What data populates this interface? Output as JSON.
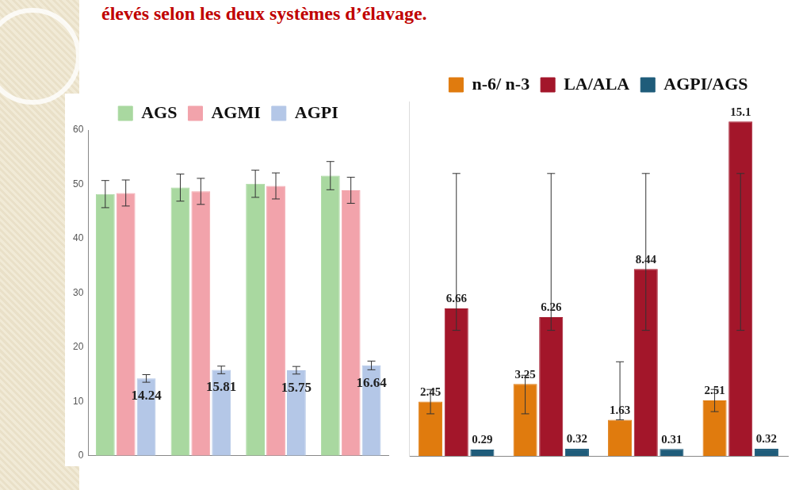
{
  "title": "élevés selon les deux systèmes d’élavage.",
  "chart_data": [
    {
      "type": "bar",
      "categories": [
        null,
        null,
        null,
        null
      ],
      "ylim": [
        0,
        60
      ],
      "yticks": [
        0,
        10,
        20,
        30,
        40,
        50,
        60
      ],
      "grid": false,
      "legend": "top",
      "tick_labels": "y",
      "series": [
        {
          "name": "AGS",
          "color": "#a9d8a0",
          "values": [
            48.2,
            49.4,
            50.1,
            51.6
          ],
          "error_low": [
            45.7,
            46.9,
            47.6,
            49.0
          ],
          "error_high": [
            50.7,
            51.9,
            52.6,
            54.2
          ]
        },
        {
          "name": "AGMI",
          "color": "#f2a3ab",
          "values": [
            48.4,
            48.7,
            49.7,
            48.9
          ],
          "error_low": [
            46.0,
            46.3,
            47.3,
            46.5
          ],
          "error_high": [
            50.8,
            51.1,
            52.1,
            51.3
          ]
        },
        {
          "name": "AGPI",
          "color": "#b4c7e7",
          "values": [
            14.24,
            15.81,
            15.75,
            16.64
          ],
          "error_low": [
            13.54,
            15.11,
            15.05,
            15.84
          ],
          "error_high": [
            14.94,
            16.51,
            16.45,
            17.44
          ],
          "data_labels": true
        }
      ]
    },
    {
      "type": "bar",
      "categories": [
        null,
        null,
        null,
        null
      ],
      "ylim": [
        0,
        16
      ],
      "grid": false,
      "legend": "top",
      "tick_labels": false,
      "data_labels": true,
      "series": [
        {
          "name": "n-6/ n-3",
          "color": "#e07b0e",
          "values": [
            2.45,
            3.25,
            1.63,
            2.51
          ],
          "error_low": [
            1.9,
            1.9,
            1.63,
            2.0
          ],
          "error_high": [
            3.0,
            3.64,
            4.25,
            3.0
          ]
        },
        {
          "name": "LA/ALA",
          "color": "#a3162a",
          "values": [
            6.66,
            6.26,
            8.44,
            15.1
          ],
          "error_low": [
            5.67,
            5.67,
            5.67,
            5.67
          ],
          "error_high": [
            12.75,
            12.75,
            12.75,
            12.75
          ]
        },
        {
          "name": "AGPI/AGS",
          "color": "#1f5c7a",
          "values": [
            0.29,
            0.32,
            0.31,
            0.32
          ]
        }
      ]
    }
  ]
}
